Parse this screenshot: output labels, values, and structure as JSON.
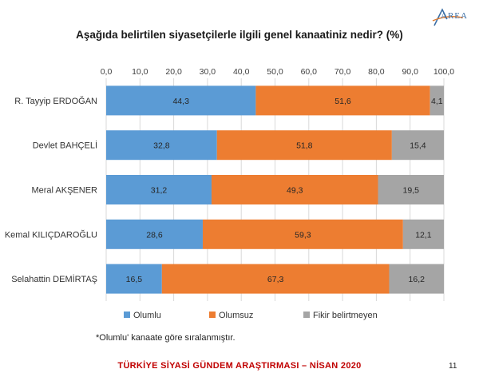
{
  "logo": {
    "text": "AREA"
  },
  "chart_data": {
    "type": "bar",
    "orientation": "horizontal",
    "stacked": true,
    "title": "Aşağıda belirtilen siyasetçilerle ilgili genel kanaatiniz nedir? (%)",
    "categories": [
      "R. Tayyip ERDOĞAN",
      "Devlet BAHÇELİ",
      "Meral AKŞENER",
      "Kemal KILIÇDAROĞLU",
      "Selahattin DEMİRTAŞ"
    ],
    "series": [
      {
        "name": "Olumlu",
        "values": [
          44.3,
          32.8,
          31.2,
          28.6,
          16.5
        ],
        "labels": [
          "44,3",
          "32,8",
          "31,2",
          "28,6",
          "16,5"
        ],
        "color": "#5b9bd5"
      },
      {
        "name": "Olumsuz",
        "values": [
          51.6,
          51.8,
          49.3,
          59.3,
          67.3
        ],
        "labels": [
          "51,6",
          "51,8",
          "49,3",
          "59,3",
          "67,3"
        ],
        "color": "#ed7d31"
      },
      {
        "name": "Fikir belirtmeyen",
        "values": [
          4.1,
          15.4,
          19.5,
          12.1,
          16.2
        ],
        "labels": [
          "4,1",
          "15,4",
          "19,5",
          "12,1",
          "16,2"
        ],
        "color": "#a5a5a5"
      }
    ],
    "xlim": [
      0,
      100
    ],
    "ticks": [
      "0,0",
      "10,0",
      "20,0",
      "30,0",
      "40,0",
      "50,0",
      "60,0",
      "70,0",
      "80,0",
      "90,0",
      "100,0"
    ],
    "tick_values": [
      0,
      10,
      20,
      30,
      40,
      50,
      60,
      70,
      80,
      90,
      100
    ],
    "axis_position": "top",
    "grid": true,
    "legend_position": "bottom"
  },
  "footnote": "*Olumlu' kanaate göre sıralanmıştır.",
  "footer": "TÜRKİYE SİYASİ GÜNDEM ARAŞTIRMASI – NİSAN 2020",
  "page_number": "11"
}
